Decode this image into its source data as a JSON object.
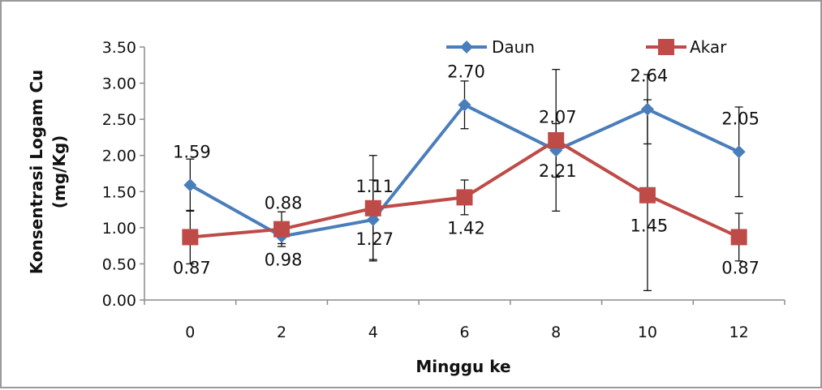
{
  "chart_data": {
    "type": "line",
    "title": "",
    "xlabel": "Minggu ke",
    "ylabel_line1": "Konsentrasi Logam Cu",
    "ylabel_line2": "(mg/Kg)",
    "x": [
      0,
      2,
      4,
      6,
      8,
      10,
      12
    ],
    "x_tick_labels": [
      "0",
      "2",
      "4",
      "6",
      "8",
      "10",
      "12"
    ],
    "y_tick_labels": [
      "0.00",
      "0.50",
      "1.00",
      "1.50",
      "2.00",
      "2.50",
      "3.00",
      "3.50"
    ],
    "ylim": [
      0,
      3.5
    ],
    "grid": false,
    "legend_position": "top-right",
    "series": [
      {
        "name": "Daun",
        "color": "#4a7ebb",
        "marker": "diamond",
        "values": [
          1.59,
          0.88,
          1.11,
          2.7,
          2.07,
          2.64,
          2.05
        ],
        "labels": [
          "1.59",
          "0.88",
          "1.11",
          "2.70",
          "2.07",
          "2.64",
          "2.05"
        ],
        "error": [
          0.36,
          0.1,
          0.55,
          0.33,
          0.37,
          0.48,
          0.62
        ]
      },
      {
        "name": "Akar",
        "color": "#be4b48",
        "marker": "square",
        "values": [
          0.87,
          0.98,
          1.27,
          1.42,
          2.21,
          1.45,
          0.87
        ],
        "labels": [
          "0.87",
          "0.98",
          "1.27",
          "1.42",
          "2.21",
          "1.45",
          "0.87"
        ],
        "error": [
          0.37,
          0.24,
          0.73,
          0.24,
          0.98,
          1.32,
          0.33
        ]
      }
    ]
  }
}
